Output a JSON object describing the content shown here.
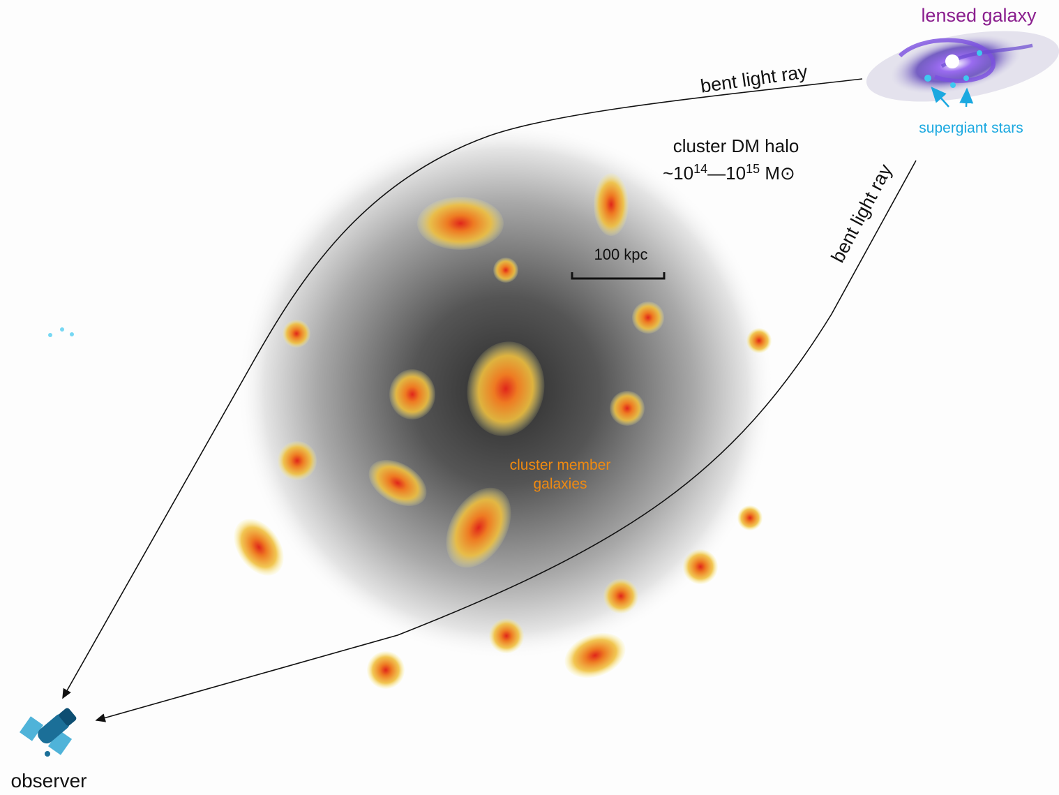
{
  "lensed_galaxy": {
    "label": "lensed galaxy",
    "annotation": "supergiant stars"
  },
  "light_rays": [
    {
      "label": "bent light ray"
    },
    {
      "label": "bent light ray"
    }
  ],
  "halo": {
    "label": "cluster DM halo",
    "mass": {
      "prefix": "~10",
      "exp_low": "14",
      "dash": "—10",
      "exp_high": "15",
      "unit": " M⊙"
    }
  },
  "scale_bar": {
    "label": "100 kpc"
  },
  "members": {
    "lines": [
      "cluster member",
      "galaxies"
    ]
  },
  "observer": {
    "label": "observer"
  }
}
